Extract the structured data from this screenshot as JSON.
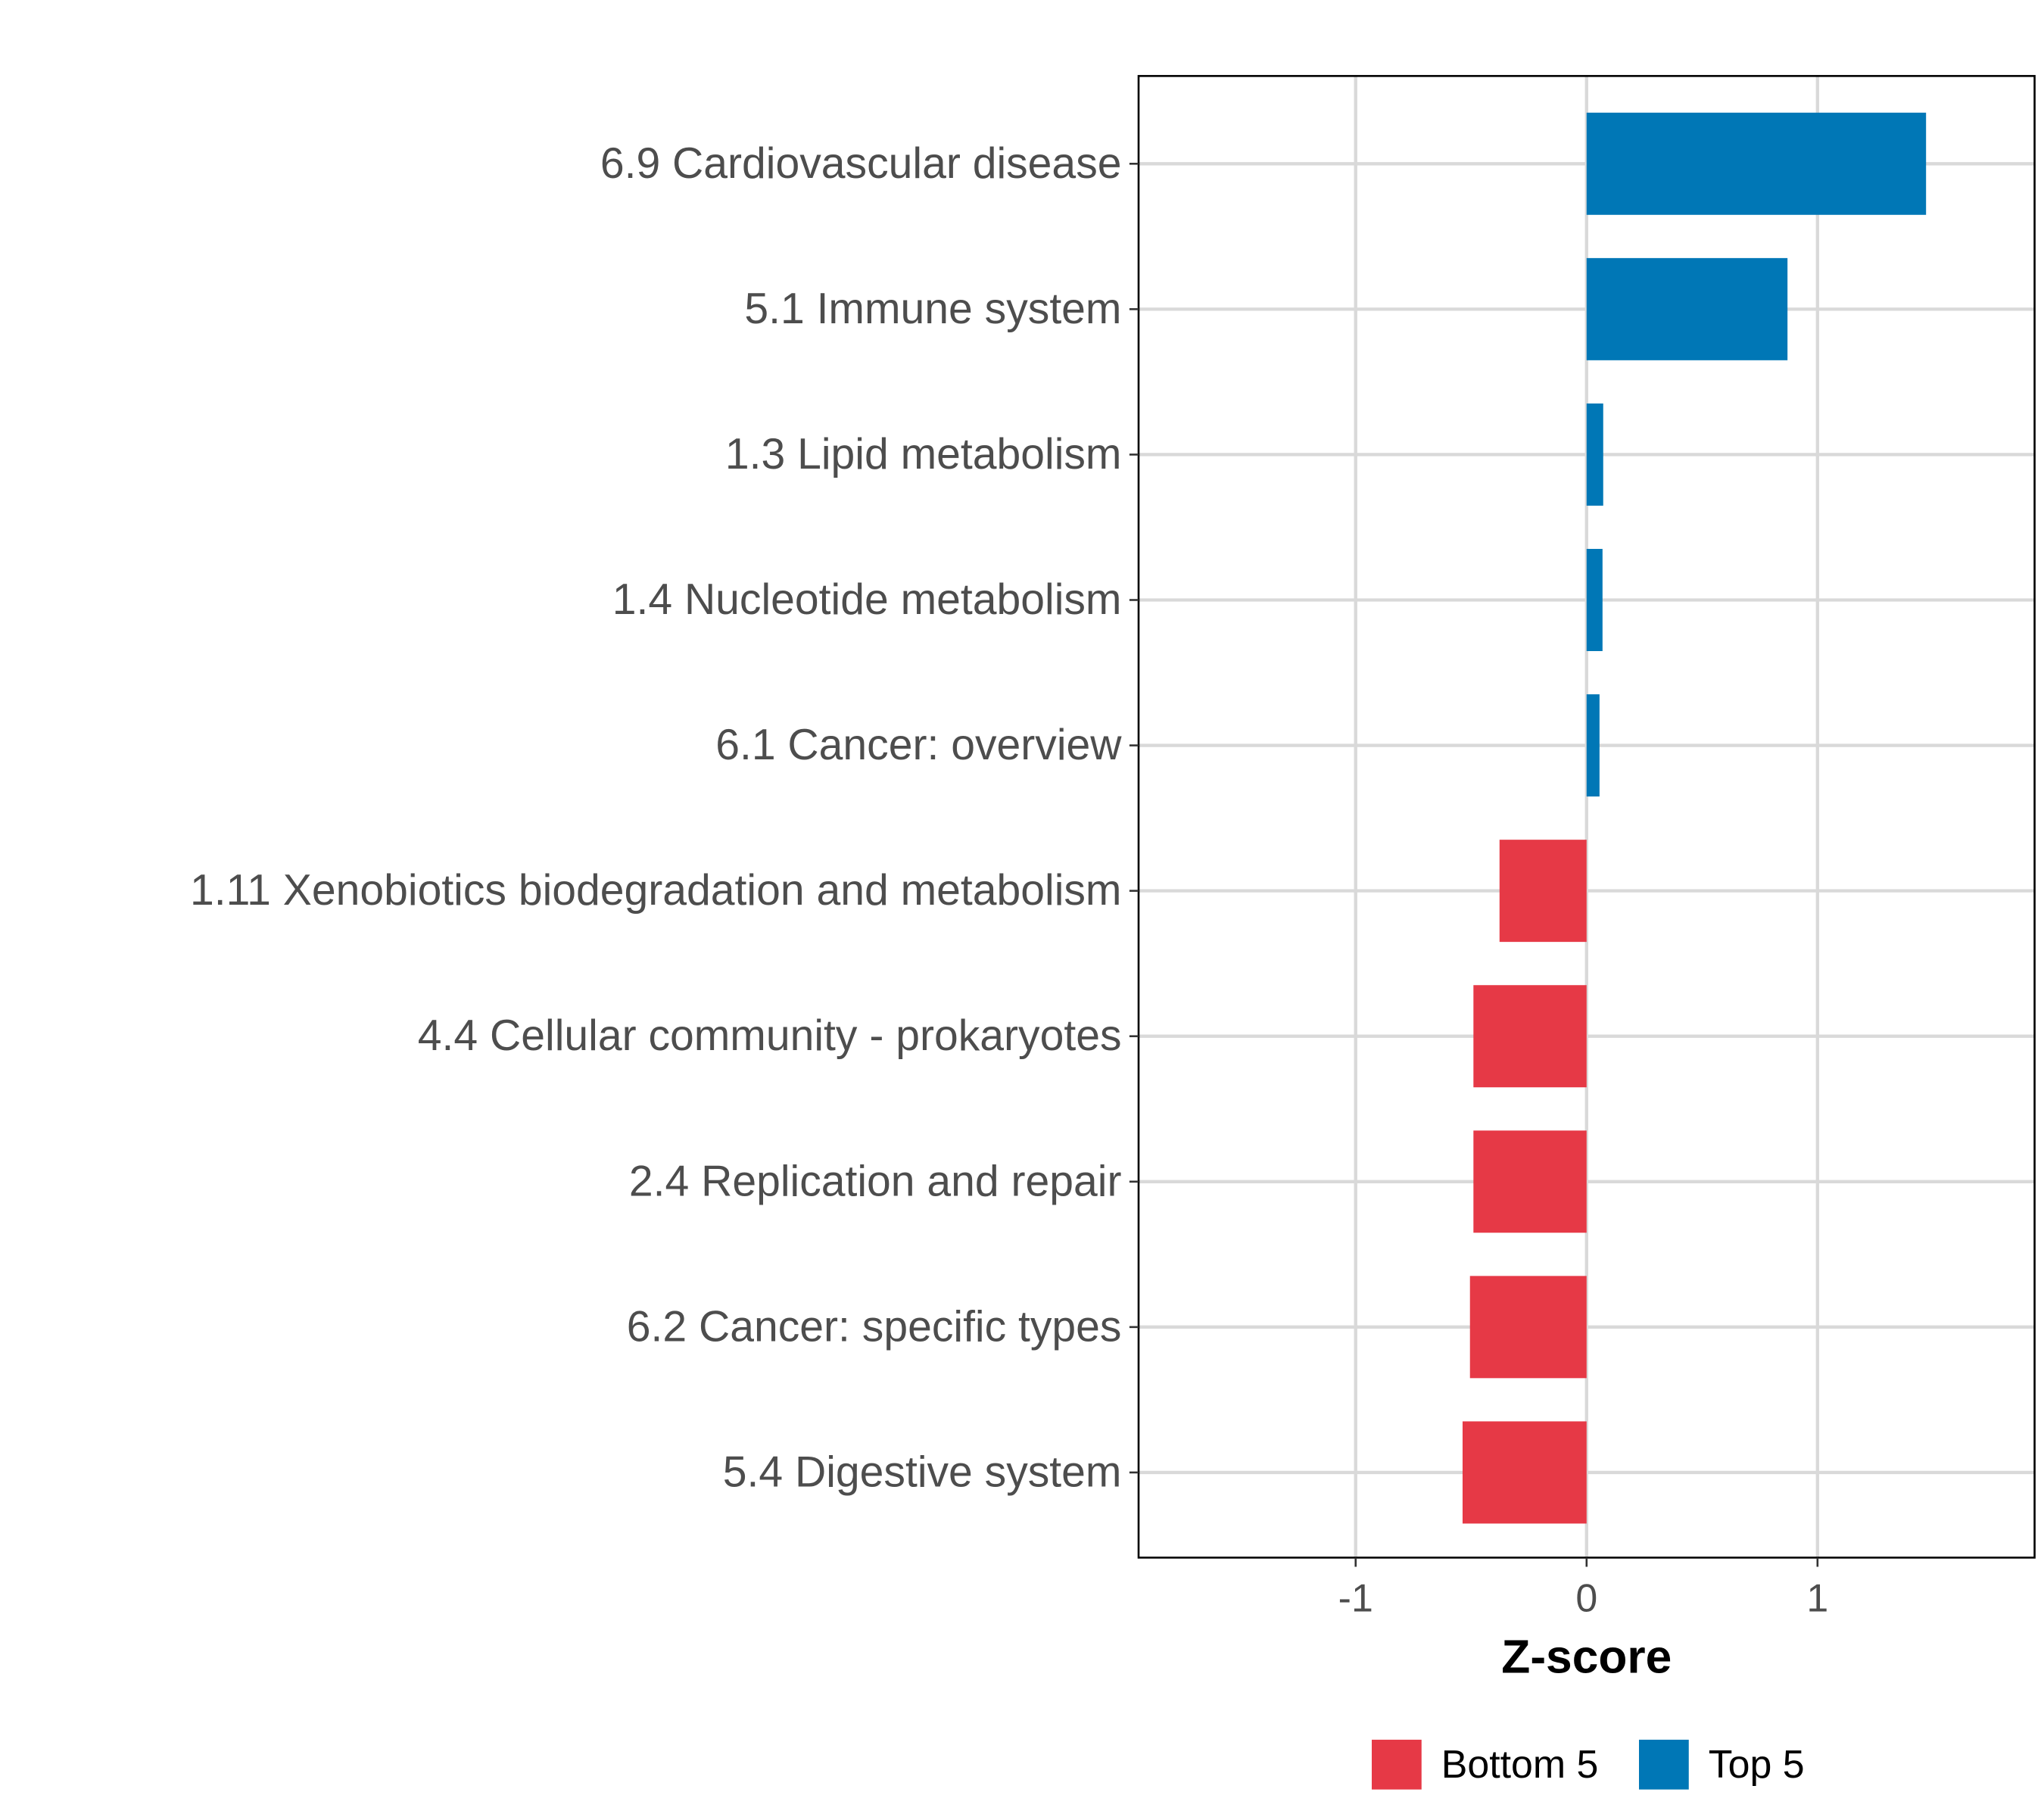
{
  "chart_data": {
    "type": "bar",
    "orientation": "horizontal",
    "title": "",
    "xlabel": "Z-score",
    "ylabel": "",
    "xlim": [
      -1.94,
      1.94
    ],
    "xticks": [
      -1,
      0,
      1
    ],
    "xtick_labels": [
      "-1",
      "0",
      "1"
    ],
    "grid": true,
    "legend_position": "bottom",
    "categories": [
      "6.9 Cardiovascular disease",
      "5.1 Immune system",
      "1.3 Lipid metabolism",
      "1.4 Nucleotide metabolism",
      "6.1 Cancer: overview",
      "1.11 Xenobiotics biodegradation and metabolism",
      "4.4 Cellular community - prokaryotes",
      "2.4 Replication and repair",
      "6.2 Cancer: specific types",
      "5.4 Digestive system"
    ],
    "values": [
      1.47,
      0.87,
      0.072,
      0.069,
      0.056,
      -0.377,
      -0.49,
      -0.49,
      -0.505,
      -0.537
    ],
    "groups": [
      "Top 5",
      "Top 5",
      "Top 5",
      "Top 5",
      "Top 5",
      "Bottom 5",
      "Bottom 5",
      "Bottom 5",
      "Bottom 5",
      "Bottom 5"
    ],
    "legend": [
      {
        "label": "Bottom 5",
        "color": "#E63946"
      },
      {
        "label": "Top 5",
        "color": "#0077B6"
      }
    ]
  }
}
